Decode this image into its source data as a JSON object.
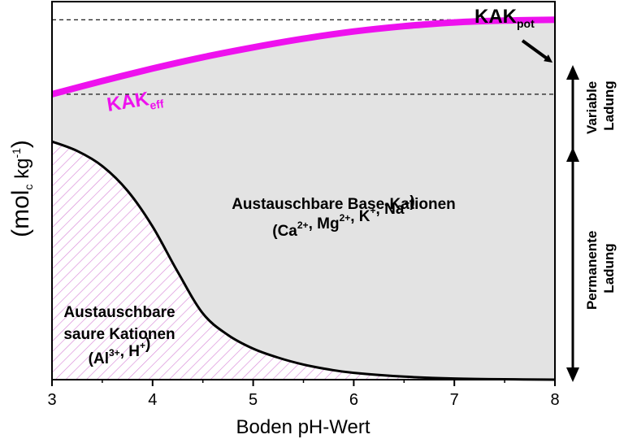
{
  "chart_data": {
    "type": "area",
    "xlabel": "Boden pH-Wert",
    "ylabel": {
      "prefix": "(mol",
      "sub": "c",
      "mid": " kg",
      "sup": "-1",
      "suffix": ")"
    },
    "xlim": [
      3,
      8
    ],
    "ylim": [
      0,
      1
    ],
    "x_ticks": [
      "3",
      "4",
      "5",
      "6",
      "7",
      "8"
    ],
    "kak_eff": {
      "label": "KAK",
      "label_sub": "eff",
      "color": "#ee11ee",
      "x": [
        3,
        3.5,
        4,
        4.5,
        5,
        5.5,
        6,
        6.5,
        7,
        7.5,
        8
      ],
      "y": [
        0.755,
        0.79,
        0.823,
        0.853,
        0.879,
        0.902,
        0.921,
        0.935,
        0.945,
        0.95,
        0.952
      ]
    },
    "saure_kationen": {
      "x": [
        3,
        3.25,
        3.5,
        3.75,
        4,
        4.25,
        4.5,
        4.75,
        5,
        5.25,
        5.5,
        5.75,
        6,
        6.5,
        7,
        7.5,
        8
      ],
      "y": [
        0.63,
        0.605,
        0.565,
        0.5,
        0.405,
        0.285,
        0.175,
        0.118,
        0.082,
        0.058,
        0.04,
        0.027,
        0.018,
        0.008,
        0.003,
        0.001,
        0.0
      ]
    },
    "dashed_levels": [
      0.952,
      0.755
    ],
    "kak_pot": {
      "label": "KAK",
      "label_sub": "pot"
    },
    "annotations": {
      "base_title": "Austauschbare Base-Kationen",
      "base_ions": [
        {
          "t": "(Ca",
          "sup": "2+"
        },
        {
          "t": ", Mg",
          "sup": "2+"
        },
        {
          "t": ", K",
          "sup": "+"
        },
        {
          "t": ", Na",
          "sup": "+"
        },
        {
          "t": ")",
          "sup": ""
        }
      ],
      "acid_line1": "Austauschbare",
      "acid_line2": "saure Kationen",
      "acid_ions": [
        {
          "t": "(Al",
          "sup": "3+"
        },
        {
          "t": ", H",
          "sup": "+"
        },
        {
          "t": ")",
          "sup": ""
        }
      ]
    },
    "side_labels": {
      "variable": [
        "Variable",
        "Ladung"
      ],
      "permanent": [
        "Permanente",
        "Ladung"
      ]
    },
    "colors": {
      "base_fill": "#e3e3e3",
      "hatch": "#d98ad9",
      "curve": "#000000"
    }
  }
}
